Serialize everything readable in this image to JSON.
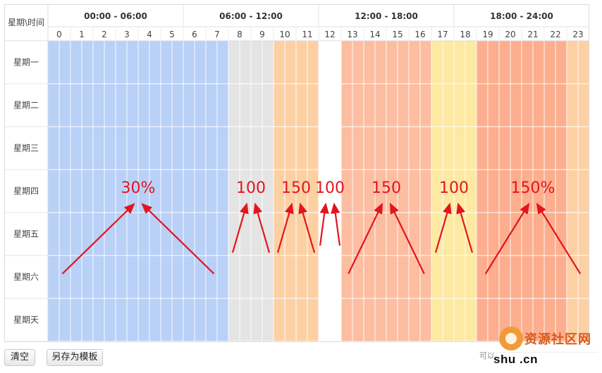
{
  "header": {
    "corner_label": "星期\\时间",
    "time_groups": [
      "00:00 - 06:00",
      "06:00 - 12:00",
      "12:00 - 18:00",
      "18:00 - 24:00"
    ],
    "hours": [
      "0",
      "1",
      "2",
      "3",
      "4",
      "5",
      "6",
      "7",
      "8",
      "9",
      "10",
      "11",
      "12",
      "13",
      "14",
      "15",
      "16",
      "17",
      "18",
      "19",
      "20",
      "21",
      "22",
      "23"
    ]
  },
  "days": [
    "星期一",
    "星期二",
    "星期三",
    "星期四",
    "星期五",
    "星期六",
    "星期天"
  ],
  "palette": {
    "blue": "#b9d0f7",
    "gray": "#e4e4e4",
    "light-orange": "#fdd0a4",
    "white": "#ffffff",
    "salmon": "#fdbda0",
    "yellow": "#fde9a2",
    "deep-salmon": "#fcae8e",
    "grid": "#ffffff",
    "annotation": "#e3141d"
  },
  "hour_colors": [
    "blue",
    "blue",
    "blue",
    "blue",
    "blue",
    "blue",
    "blue",
    "blue",
    "gray",
    "gray",
    "light-orange",
    "light-orange",
    "white",
    "salmon",
    "salmon",
    "salmon",
    "salmon",
    "yellow",
    "yellow",
    "deep-salmon",
    "deep-salmon",
    "deep-salmon",
    "deep-salmon",
    "light-orange"
  ],
  "annotations": [
    {
      "text": "30%",
      "hour_start": 0,
      "hour_end": 7
    },
    {
      "text": "100",
      "hour_start": 8,
      "hour_end": 9
    },
    {
      "text": "150",
      "hour_start": 10,
      "hour_end": 11
    },
    {
      "text": "100",
      "hour_start": 12,
      "hour_end": 12
    },
    {
      "text": "150",
      "hour_start": 13,
      "hour_end": 16
    },
    {
      "text": "100",
      "hour_start": 17,
      "hour_end": 18
    },
    {
      "text": "150%",
      "hour_start": 19,
      "hour_end": 23
    }
  ],
  "buttons": {
    "clear": "清空",
    "save_template": "另存为模板"
  },
  "hint_text": "可以",
  "watermark": {
    "cn": "资源社区网",
    "domain": "shu  .cn"
  }
}
